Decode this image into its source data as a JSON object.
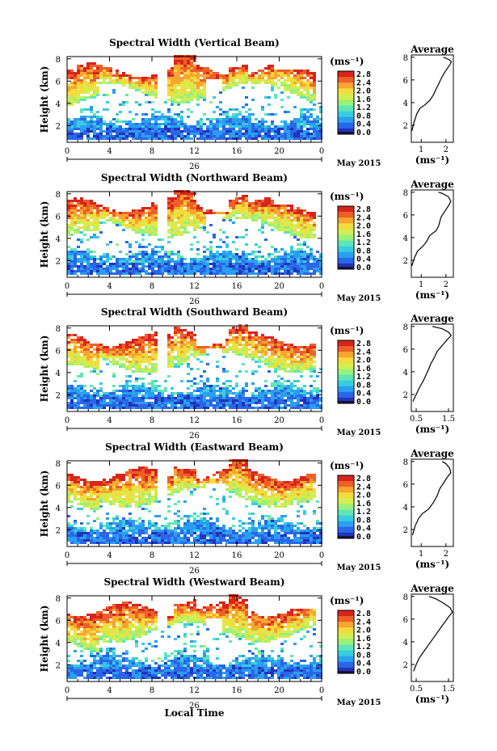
{
  "xlabel": "Local Time",
  "colors": [
    "#2233bb",
    "#2a66e8",
    "#2a9ff0",
    "#39cce0",
    "#5fe6b8",
    "#9af07a",
    "#d2ee52",
    "#f3dc3c",
    "#f7a630",
    "#ee6028",
    "#d8241c"
  ],
  "bottom_color": "#14143a",
  "chart_data": [
    {
      "type": "heatmap",
      "title": "Spectral Width (Vertical Beam)",
      "ylabel": "Height (km)",
      "x_ticks": [
        "0",
        "4",
        "8",
        "12",
        "16",
        "20",
        "0"
      ],
      "x_date": "26",
      "x_month": "May 2015",
      "y_ticks": [
        "2",
        "4",
        "6",
        "8"
      ],
      "colorbar_unit": "(ms⁻¹)",
      "colorbar_ticks": [
        "0.0",
        "0.4",
        "0.8",
        "1.2",
        "1.6",
        "2.0",
        "2.4",
        "2.8"
      ],
      "avg_title": "Average",
      "avg_xlabel": "(ms⁻¹)",
      "avg_xticks": [
        {
          "v": 1,
          "t": "1"
        },
        {
          "v": 2,
          "t": "2"
        }
      ],
      "avg_xlim": [
        0.6,
        2.3
      ],
      "avg_profile": [
        [
          0.62,
          1.5
        ],
        [
          0.7,
          2.2
        ],
        [
          0.82,
          3.0
        ],
        [
          0.95,
          3.5
        ],
        [
          1.15,
          3.8
        ],
        [
          1.35,
          4.2
        ],
        [
          1.5,
          4.7
        ],
        [
          1.6,
          5.2
        ],
        [
          1.7,
          5.6
        ],
        [
          1.78,
          6.0
        ],
        [
          1.9,
          6.5
        ],
        [
          2.05,
          7.0
        ],
        [
          2.15,
          7.3
        ],
        [
          2.22,
          7.6
        ],
        [
          2.12,
          7.8
        ],
        [
          1.9,
          8.0
        ]
      ]
    },
    {
      "type": "heatmap",
      "title": "Spectral Width (Northward Beam)",
      "ylabel": "Height (km)",
      "x_ticks": [
        "0",
        "4",
        "8",
        "12",
        "16",
        "20",
        "0"
      ],
      "x_date": "26",
      "x_month": "May 2015",
      "y_ticks": [
        "2",
        "4",
        "6",
        "8"
      ],
      "colorbar_unit": "(ms⁻¹)",
      "colorbar_ticks": [
        "0.0",
        "0.4",
        "0.8",
        "1.2",
        "1.6",
        "2.0",
        "2.4",
        "2.8"
      ],
      "avg_title": "Average",
      "avg_xlabel": "(ms⁻¹)",
      "avg_xticks": [
        {
          "v": 1,
          "t": "1"
        },
        {
          "v": 2,
          "t": "2"
        }
      ],
      "avg_xlim": [
        0.6,
        2.3
      ],
      "avg_profile": [
        [
          0.62,
          1.5
        ],
        [
          0.72,
          2.2
        ],
        [
          0.85,
          2.8
        ],
        [
          1.05,
          3.2
        ],
        [
          1.2,
          3.6
        ],
        [
          1.35,
          4.2
        ],
        [
          1.6,
          4.6
        ],
        [
          1.7,
          5.0
        ],
        [
          1.75,
          5.4
        ],
        [
          1.8,
          5.8
        ],
        [
          1.95,
          6.3
        ],
        [
          2.1,
          6.8
        ],
        [
          2.2,
          7.2
        ],
        [
          2.1,
          7.6
        ],
        [
          1.85,
          7.9
        ],
        [
          1.7,
          8.0
        ]
      ]
    },
    {
      "type": "heatmap",
      "title": "Spectral Width (Southward Beam)",
      "ylabel": "Height (km)",
      "x_ticks": [
        "0",
        "4",
        "8",
        "12",
        "16",
        "20",
        "0"
      ],
      "x_date": "26",
      "x_month": "May 2015",
      "y_ticks": [
        "2",
        "4",
        "6",
        "8"
      ],
      "colorbar_unit": "(ms⁻¹)",
      "colorbar_ticks": [
        "0.0",
        "0.4",
        "0.8",
        "1.2",
        "1.6",
        "2.0",
        "2.4",
        "2.8"
      ],
      "avg_title": "Average",
      "avg_xlabel": "(ms⁻¹)",
      "avg_xticks": [
        {
          "v": 0.5,
          "t": "0.5"
        },
        {
          "v": 1.5,
          "t": "1.5"
        }
      ],
      "avg_xlim": [
        0.35,
        1.65
      ],
      "avg_profile": [
        [
          0.4,
          1.4
        ],
        [
          0.5,
          2.0
        ],
        [
          0.6,
          2.6
        ],
        [
          0.72,
          3.2
        ],
        [
          0.8,
          3.7
        ],
        [
          0.88,
          4.2
        ],
        [
          0.95,
          4.7
        ],
        [
          1.05,
          5.2
        ],
        [
          1.15,
          5.8
        ],
        [
          1.3,
          6.3
        ],
        [
          1.45,
          6.8
        ],
        [
          1.58,
          7.2
        ],
        [
          1.5,
          7.5
        ],
        [
          1.3,
          7.8
        ],
        [
          1.0,
          8.0
        ]
      ]
    },
    {
      "type": "heatmap",
      "title": "Spectral Width (Eastward Beam)",
      "ylabel": "Height (km)",
      "x_ticks": [
        "0",
        "4",
        "8",
        "12",
        "16",
        "20",
        "0"
      ],
      "x_date": "26",
      "x_month": "May 2015",
      "y_ticks": [
        "2",
        "4",
        "6",
        "8"
      ],
      "colorbar_unit": "(ms⁻¹)",
      "colorbar_ticks": [
        "0.0",
        "0.4",
        "0.8",
        "1.2",
        "1.6",
        "2.0",
        "2.4",
        "2.8"
      ],
      "avg_title": "Average",
      "avg_xlabel": "(ms⁻¹)",
      "avg_xticks": [
        {
          "v": 1,
          "t": "1"
        },
        {
          "v": 2,
          "t": "2"
        }
      ],
      "avg_xlim": [
        0.6,
        2.3
      ],
      "avg_profile": [
        [
          0.65,
          1.5
        ],
        [
          0.75,
          2.3
        ],
        [
          0.9,
          3.0
        ],
        [
          1.05,
          3.4
        ],
        [
          1.3,
          3.8
        ],
        [
          1.5,
          4.4
        ],
        [
          1.65,
          5.0
        ],
        [
          1.75,
          5.6
        ],
        [
          1.9,
          6.1
        ],
        [
          2.05,
          6.6
        ],
        [
          2.2,
          7.0
        ],
        [
          2.15,
          7.4
        ],
        [
          2.0,
          7.8
        ],
        [
          1.85,
          8.0
        ]
      ]
    },
    {
      "type": "heatmap",
      "title": "Spectral Width (Westward Beam)",
      "ylabel": "Height (km)",
      "x_ticks": [
        "0",
        "4",
        "8",
        "12",
        "16",
        "20",
        "0"
      ],
      "x_date": "26",
      "x_month": "May 2015",
      "y_ticks": [
        "2",
        "4",
        "6",
        "8"
      ],
      "colorbar_unit": "(ms⁻¹)",
      "colorbar_ticks": [
        "0.0",
        "0.4",
        "0.8",
        "1.2",
        "1.6",
        "2.0",
        "2.4",
        "2.8"
      ],
      "avg_title": "Average",
      "avg_xlabel": "(ms⁻¹)",
      "avg_xticks": [
        {
          "v": 0.5,
          "t": "0.5"
        },
        {
          "v": 1.5,
          "t": "1.5"
        }
      ],
      "avg_xlim": [
        0.35,
        1.65
      ],
      "avg_profile": [
        [
          0.42,
          1.4
        ],
        [
          0.5,
          2.0
        ],
        [
          0.6,
          2.6
        ],
        [
          0.75,
          3.2
        ],
        [
          0.9,
          3.8
        ],
        [
          1.05,
          4.4
        ],
        [
          1.2,
          5.0
        ],
        [
          1.35,
          5.6
        ],
        [
          1.5,
          6.2
        ],
        [
          1.62,
          6.6
        ],
        [
          1.55,
          7.0
        ],
        [
          1.35,
          7.4
        ],
        [
          1.1,
          7.8
        ],
        [
          0.9,
          8.0
        ]
      ]
    }
  ]
}
